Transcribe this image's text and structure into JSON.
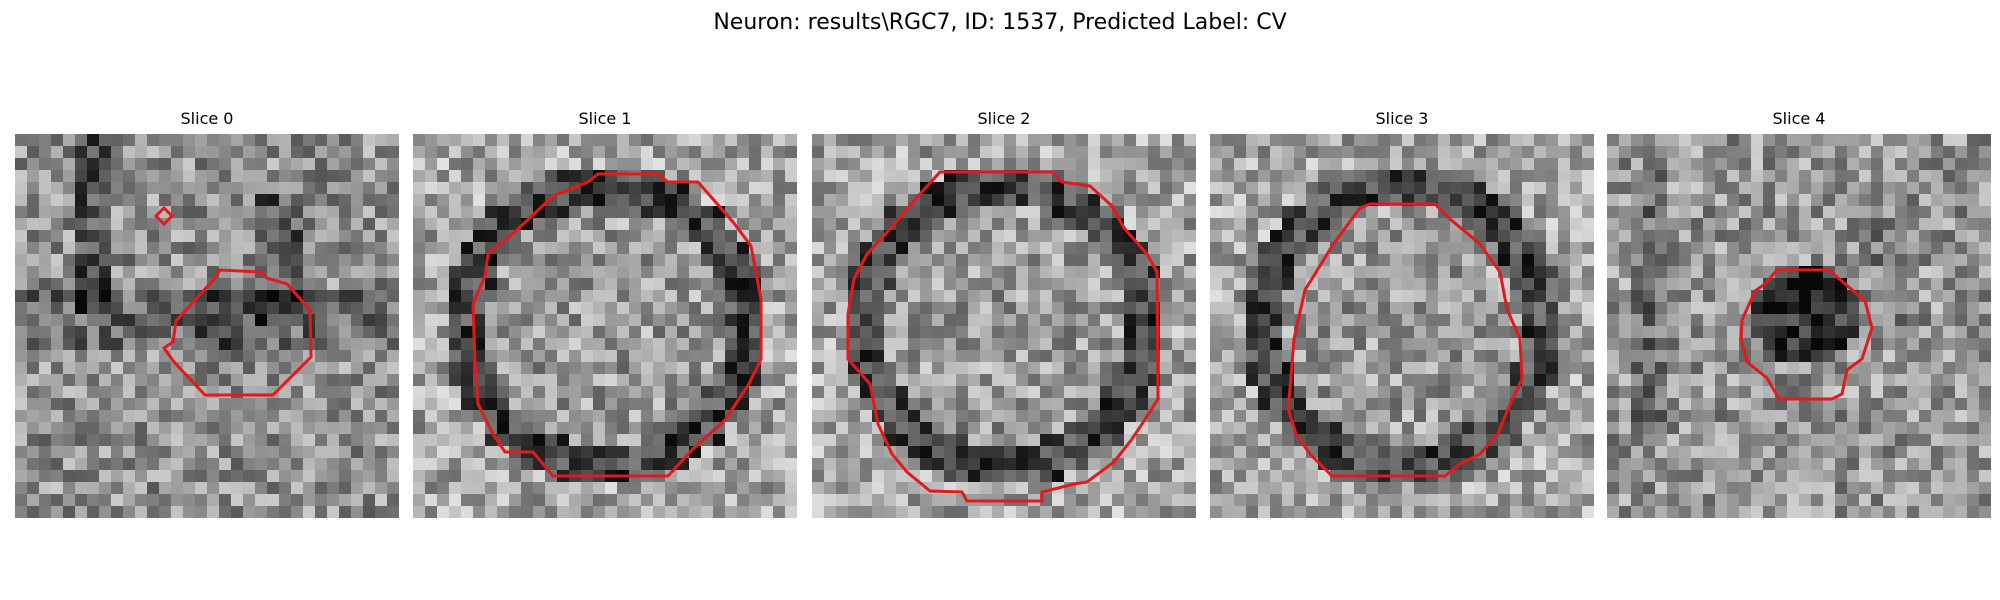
{
  "figure": {
    "title": "Neuron: results\\RGC7, ID: 1537, Predicted Label: CV",
    "contour_color": "#e31a1c",
    "colormap": "grayscale",
    "slices": [
      {
        "title": "Slice 0"
      },
      {
        "title": "Slice 1"
      },
      {
        "title": "Slice 2"
      },
      {
        "title": "Slice 3"
      },
      {
        "title": "Slice 4"
      }
    ]
  }
}
